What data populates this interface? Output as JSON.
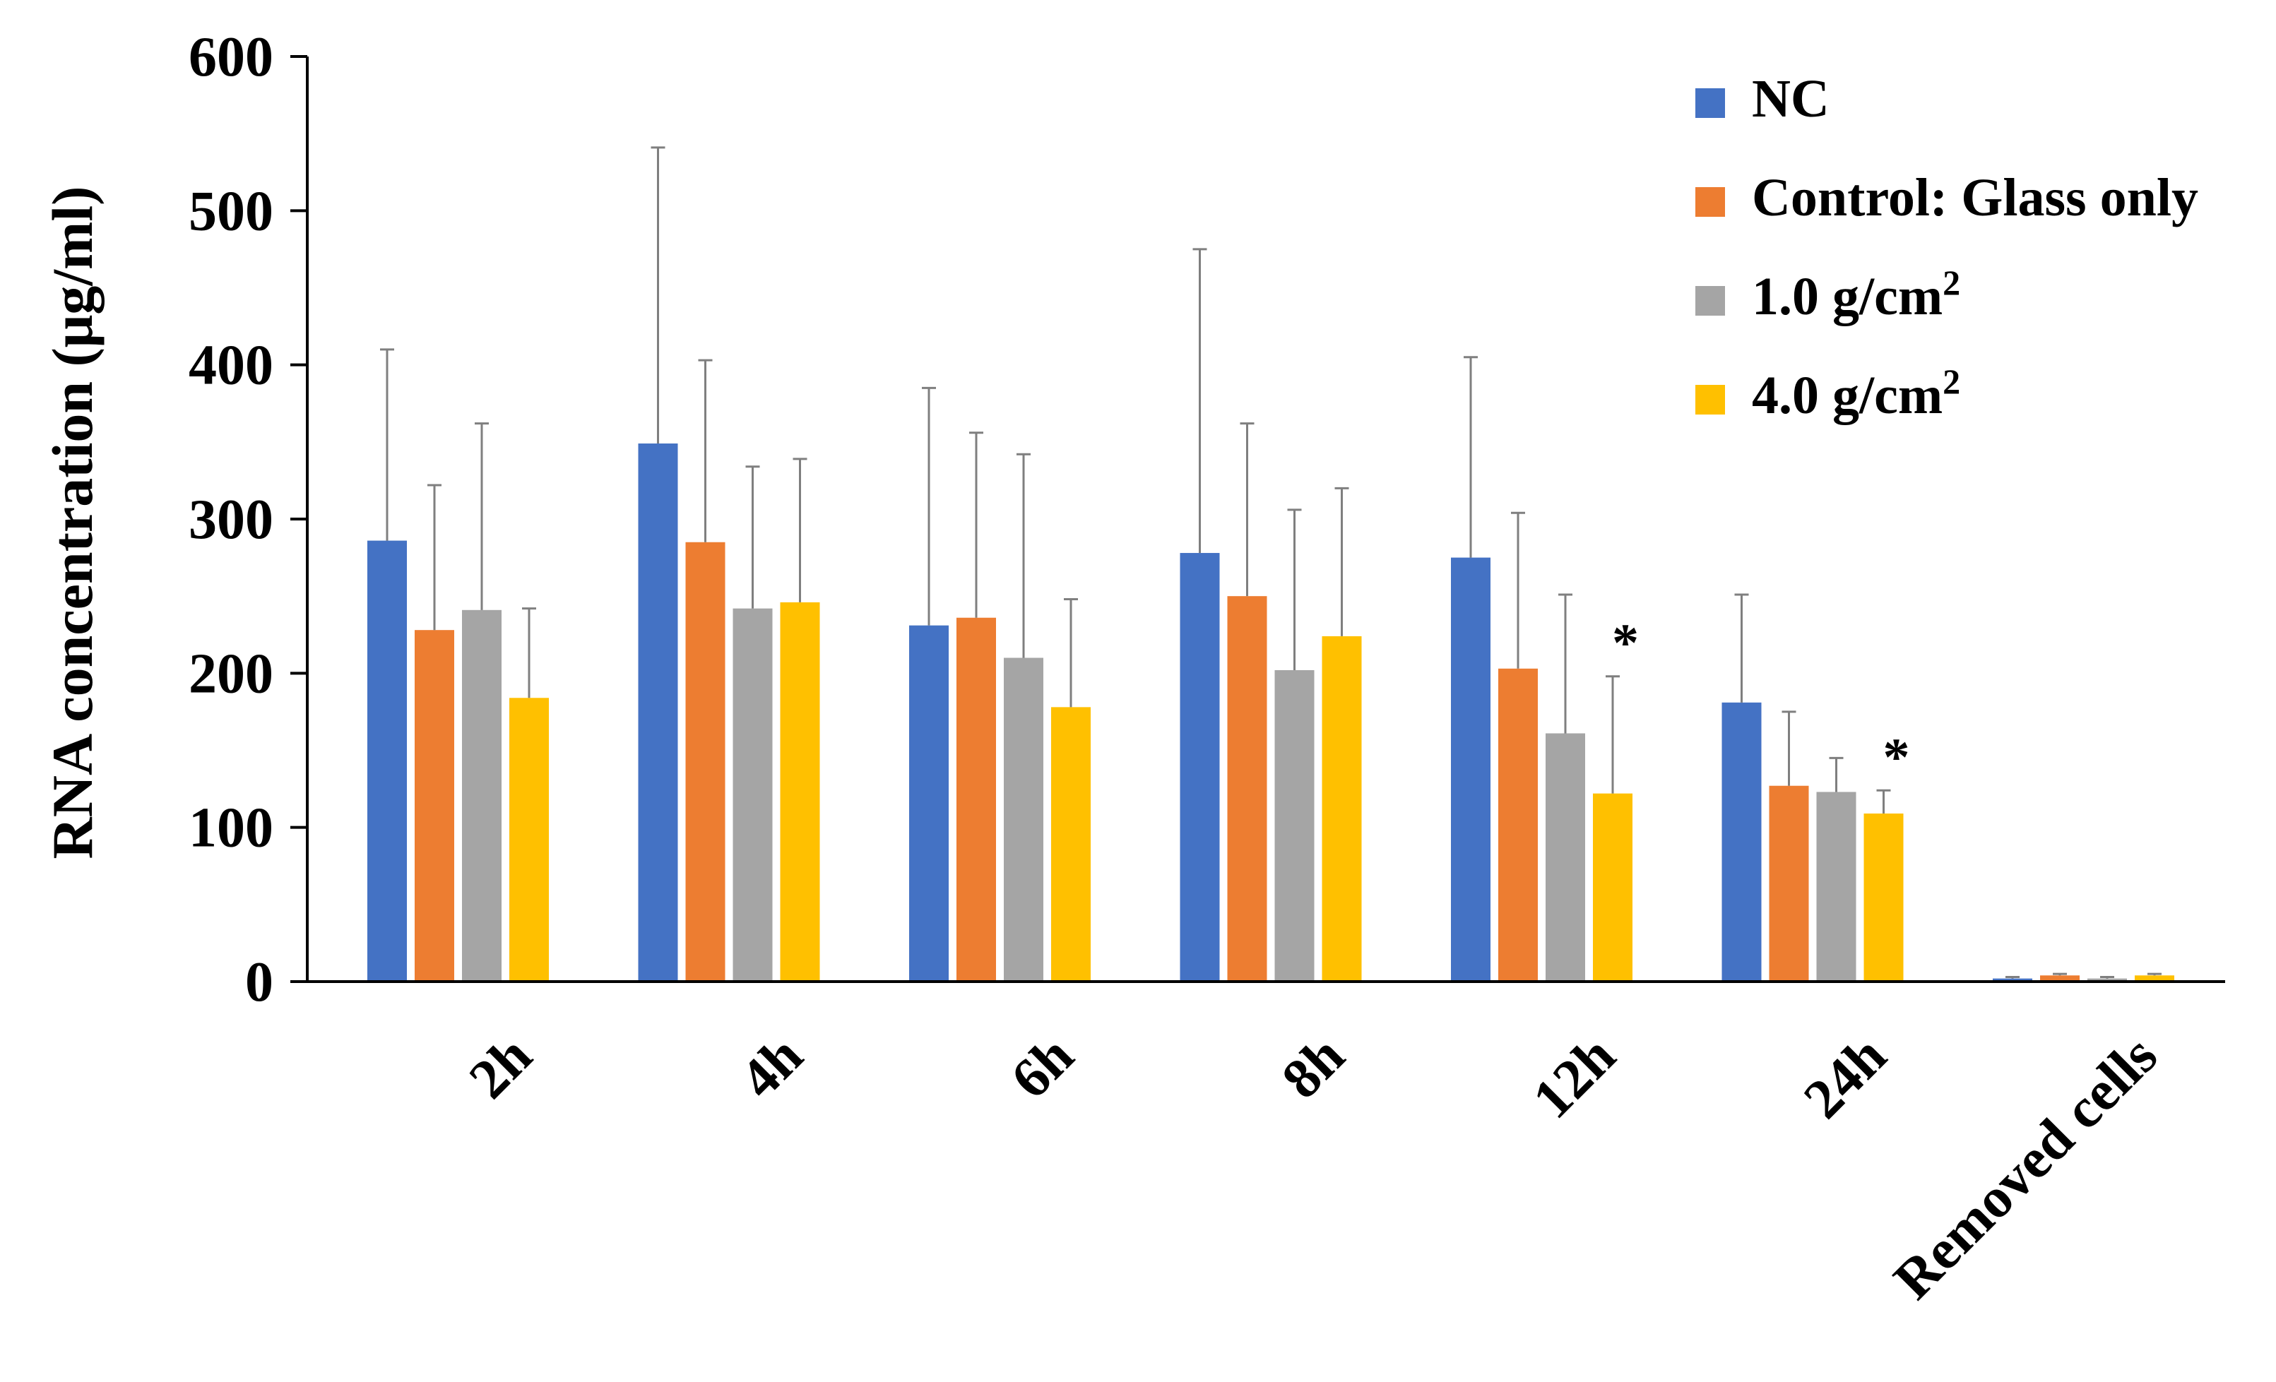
{
  "chart_data": {
    "type": "bar",
    "title": "",
    "xlabel": "",
    "ylabel": "RNA concentration (μg/ml)",
    "ylim": [
      0,
      600
    ],
    "yticks": [
      0,
      100,
      200,
      300,
      400,
      500,
      600
    ],
    "grid": false,
    "legend_position": "top-right",
    "categories": [
      "2h",
      "4h",
      "6h",
      "8h",
      "12h",
      "24h",
      "Removed cells"
    ],
    "series": [
      {
        "name": "NC",
        "color": "#4472C4",
        "values": [
          286,
          349,
          231,
          278,
          275,
          181,
          2
        ],
        "errors": [
          124,
          192,
          154,
          197,
          130,
          70,
          1
        ]
      },
      {
        "name": "Control: Glass only",
        "color": "#ED7D31",
        "values": [
          228,
          285,
          236,
          250,
          203,
          127,
          4
        ],
        "errors": [
          94,
          118,
          120,
          112,
          101,
          48,
          1
        ]
      },
      {
        "name": "1.0 g/cm",
        "name_sup": "2",
        "color": "#A5A5A5",
        "values": [
          241,
          242,
          210,
          202,
          161,
          123,
          2
        ],
        "errors": [
          121,
          92,
          132,
          104,
          90,
          22,
          1
        ]
      },
      {
        "name": "4.0 g/cm",
        "name_sup": "2",
        "color": "#FFC000",
        "values": [
          184,
          246,
          178,
          224,
          122,
          109,
          4
        ],
        "errors": [
          58,
          93,
          70,
          96,
          76,
          15,
          1
        ]
      }
    ],
    "annotations": [
      {
        "text": "*",
        "category": "12h",
        "series": 3
      },
      {
        "text": "*",
        "category": "24h",
        "series": 3
      }
    ]
  }
}
